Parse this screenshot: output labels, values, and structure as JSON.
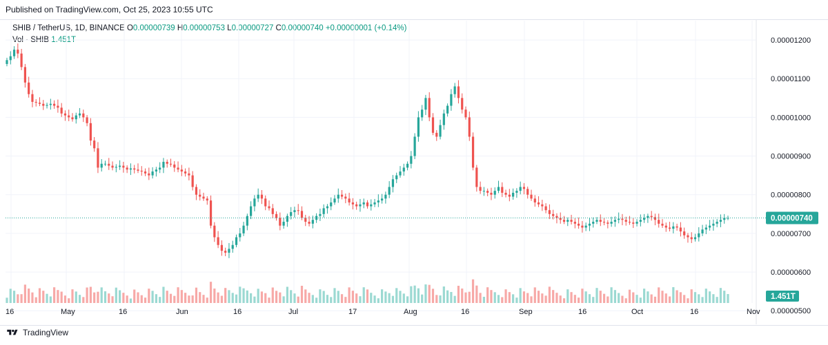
{
  "header": {
    "published": "Published on TradingView.com, Oct 25, 2023 10:55 UTC"
  },
  "legend": {
    "symbol": "SHIB / TetherUS, 1D, BINANCE",
    "open_label": "O",
    "open": "0.00000739",
    "high_label": "H",
    "high": "0.00000753",
    "low_label": "L",
    "low": "0.00000727",
    "close_label": "C",
    "close": "0.00000740",
    "change": "+0.00000001 (+0.14%)",
    "vol_label": "Vol · SHIB",
    "vol": "1.451T"
  },
  "footer": {
    "brand": "TradingView"
  },
  "colors": {
    "up": "#26a69a",
    "down": "#ef5350",
    "up_vol": "#9bd9d2",
    "down_vol": "#f7a9a7",
    "price_tag": "#26a69a",
    "grid": "#f0f3fa"
  },
  "chart_data": {
    "type": "candlestick",
    "symbol": "SHIB / TetherUS",
    "interval": "1D",
    "exchange": "BINANCE",
    "ylim": [
      5.2e-06,
      1.25e-05
    ],
    "y_ticks": [
      "0.00001200",
      "0.00001100",
      "0.00001000",
      "0.00000900",
      "0.00000800",
      "0.00000700",
      "0.00000600",
      "0.00000500"
    ],
    "x_ticks": [
      "16",
      "May",
      "16",
      "Jun",
      "16",
      "Jul",
      "17",
      "Aug",
      "16",
      "Sep",
      "16",
      "Oct",
      "16",
      "Nov"
    ],
    "last_price": "0.00000740",
    "last_volume": "1.451T",
    "grid": true,
    "series": [
      {
        "name": "price_close_e8",
        "values": [
          1148,
          1158,
          1175,
          1165,
          1130,
          1090,
          1060,
          1040,
          1038,
          1035,
          1030,
          1032,
          1035,
          1030,
          1025,
          1010,
          1005,
          1000,
          995,
          1005,
          1010,
          1000,
          985,
          940,
          920,
          870,
          880,
          880,
          875,
          870,
          872,
          875,
          870,
          865,
          868,
          865,
          862,
          860,
          855,
          850,
          860,
          865,
          870,
          885,
          880,
          878,
          870,
          865,
          860,
          855,
          850,
          820,
          800,
          795,
          790,
          785,
          720,
          690,
          670,
          655,
          650,
          660,
          670,
          690,
          700,
          720,
          745,
          770,
          790,
          800,
          790,
          770,
          765,
          750,
          740,
          720,
          730,
          745,
          755,
          760,
          758,
          740,
          730,
          725,
          735,
          745,
          750,
          765,
          770,
          780,
          790,
          800,
          795,
          790,
          780,
          775,
          770,
          775,
          780,
          770,
          775,
          780,
          785,
          790,
          800,
          820,
          840,
          850,
          860,
          870,
          880,
          900,
          950,
          1000,
          1020,
          1050,
          1000,
          960,
          950,
          980,
          1010,
          1030,
          1060,
          1080,
          1050,
          1020,
          1000,
          950,
          870,
          820,
          810,
          810,
          805,
          800,
          810,
          820,
          805,
          800,
          795,
          805,
          810,
          820,
          815,
          800,
          790,
          780,
          775,
          770,
          760,
          750,
          745,
          740,
          735,
          730,
          735,
          730,
          725,
          720,
          715,
          720,
          725,
          730,
          735,
          730,
          728,
          725,
          730,
          735,
          738,
          735,
          730,
          728,
          725,
          730,
          735,
          740,
          745,
          742,
          735,
          725,
          720,
          715,
          712,
          718,
          715,
          705,
          695,
          690,
          685,
          690,
          700,
          710,
          715,
          720,
          725,
          730,
          735,
          740,
          740
        ]
      }
    ]
  }
}
